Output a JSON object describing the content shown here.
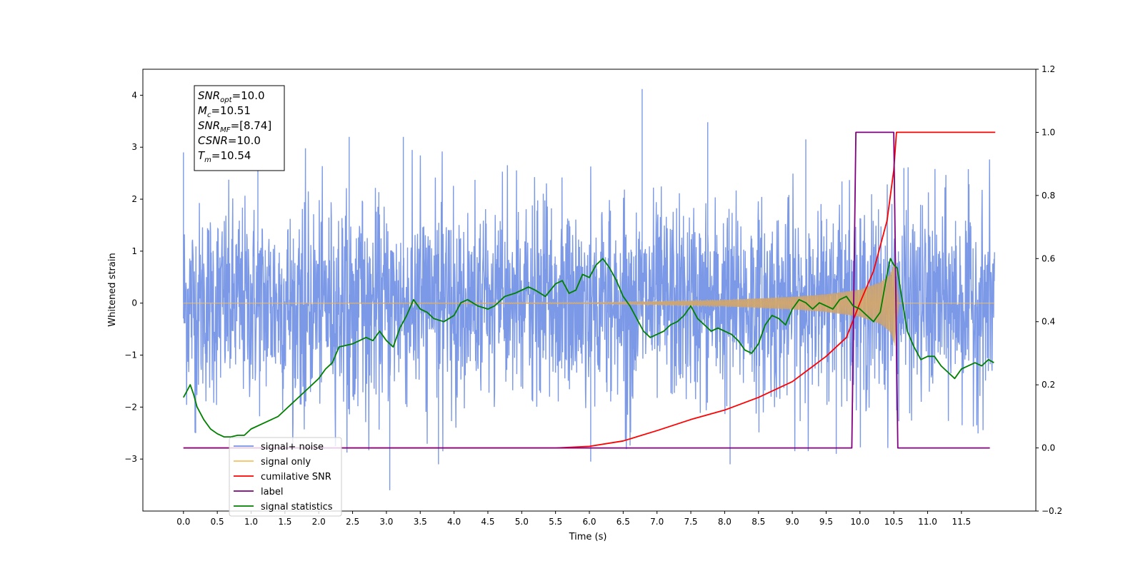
{
  "chart_data": {
    "type": "line",
    "xlabel": "Time (s)",
    "ylabel": "Whitened strain",
    "xlim": [
      -0.6,
      12.6
    ],
    "ylim": [
      -4.0,
      4.5
    ],
    "y2lim": [
      -0.2,
      1.2
    ],
    "x_ticks": [
      0.0,
      0.5,
      1.0,
      1.5,
      2.0,
      2.5,
      3.0,
      3.5,
      4.0,
      4.5,
      5.0,
      5.5,
      6.0,
      6.5,
      7.0,
      7.5,
      8.0,
      8.5,
      9.0,
      9.5,
      10.0,
      10.5,
      11.0,
      11.5
    ],
    "x_tick_labels": [
      "0.0",
      "0.5",
      "1.0",
      "1.5",
      "2.0",
      "2.5",
      "3.0",
      "3.5",
      "4.0",
      "4.5",
      "5.0",
      "5.5",
      "6.0",
      "6.5",
      "7.0",
      "7.5",
      "8.0",
      "8.5",
      "9.0",
      "9.5",
      "10.0",
      "10.5",
      "11.0",
      "11.5"
    ],
    "y_ticks": [
      -3,
      -2,
      -1,
      0,
      1,
      2,
      3,
      4
    ],
    "y_tick_labels": [
      "−3",
      "−2",
      "−1",
      "0",
      "1",
      "2",
      "3",
      "4"
    ],
    "y2_ticks": [
      -0.2,
      0.0,
      0.2,
      0.4,
      0.6,
      0.8,
      1.0,
      1.2
    ],
    "y2_tick_labels": [
      "−0.2",
      "0.0",
      "0.2",
      "0.4",
      "0.6",
      "0.8",
      "1.0",
      "1.2"
    ],
    "grid": false,
    "legend_position": "lower-left",
    "annotation_box": {
      "position": "top-left",
      "lines": [
        {
          "base": "SNR",
          "sub": "opt",
          "rest": "=10.0"
        },
        {
          "base": "M",
          "sub": "c",
          "rest": "=10.51"
        },
        {
          "base": "SNR",
          "sub": "MF",
          "rest": "=[8.74]"
        },
        {
          "base": "CSNR",
          "sub": "",
          "rest": "=10.0"
        },
        {
          "base": "T",
          "sub": "m",
          "rest": "=10.54"
        }
      ]
    },
    "series": [
      {
        "name": "signal+ noise",
        "axis": "left",
        "color": "#7593e6",
        "description_values": "whitened noise with std ≈ 0.9, peaks ≈ ±3",
        "x_range": [
          0.0,
          11.99
        ],
        "spikes": [
          [
            0.0,
            2.9
          ],
          [
            0.18,
            -2.5
          ],
          [
            1.1,
            2.75
          ],
          [
            2.45,
            3.2
          ],
          [
            3.05,
            -3.6
          ],
          [
            3.25,
            3.2
          ],
          [
            3.77,
            -3.1
          ],
          [
            6.78,
            4.12
          ],
          [
            6.02,
            -3.05
          ],
          [
            7.75,
            3.48
          ],
          [
            8.08,
            -3.1
          ],
          [
            9.2,
            3.15
          ],
          [
            9.65,
            -2.9
          ],
          [
            10.65,
            2.6
          ]
        ]
      },
      {
        "name": "signal only",
        "axis": "left",
        "color": "#f5c060",
        "x_range": [
          0.0,
          11.99
        ],
        "envelope": [
          [
            0.0,
            0.0
          ],
          [
            6.0,
            0.01
          ],
          [
            7.0,
            0.03
          ],
          [
            8.0,
            0.06
          ],
          [
            9.0,
            0.12
          ],
          [
            9.5,
            0.17
          ],
          [
            10.0,
            0.26
          ],
          [
            10.3,
            0.4
          ],
          [
            10.45,
            0.55
          ],
          [
            10.5,
            0.75
          ],
          [
            10.54,
            0.95
          ],
          [
            10.55,
            0.0
          ],
          [
            11.99,
            0.0
          ]
        ]
      },
      {
        "name": "cumilative SNR",
        "axis": "right",
        "color": "#ff0000",
        "points": [
          [
            0.0,
            0.0
          ],
          [
            5.0,
            0.0
          ],
          [
            5.5,
            0.0
          ],
          [
            6.0,
            0.005
          ],
          [
            6.5,
            0.022
          ],
          [
            7.0,
            0.055
          ],
          [
            7.5,
            0.09
          ],
          [
            8.0,
            0.12
          ],
          [
            8.5,
            0.16
          ],
          [
            9.0,
            0.21
          ],
          [
            9.5,
            0.29
          ],
          [
            9.8,
            0.35
          ],
          [
            10.0,
            0.46
          ],
          [
            10.2,
            0.56
          ],
          [
            10.4,
            0.72
          ],
          [
            10.5,
            0.88
          ],
          [
            10.54,
            1.0
          ],
          [
            12.0,
            1.0
          ]
        ]
      },
      {
        "name": "label",
        "axis": "right",
        "color": "#800080",
        "points": [
          [
            0.0,
            0.0
          ],
          [
            9.88,
            0.0
          ],
          [
            9.94,
            1.0
          ],
          [
            10.5,
            1.0
          ],
          [
            10.56,
            0.0
          ],
          [
            11.92,
            0.0
          ]
        ]
      },
      {
        "name": "signal statistics",
        "axis": "right",
        "color": "#008000",
        "points": [
          [
            0.0,
            0.16
          ],
          [
            0.05,
            0.18
          ],
          [
            0.1,
            0.2
          ],
          [
            0.15,
            0.17
          ],
          [
            0.2,
            0.13
          ],
          [
            0.3,
            0.09
          ],
          [
            0.4,
            0.06
          ],
          [
            0.5,
            0.045
          ],
          [
            0.6,
            0.035
          ],
          [
            0.7,
            0.035
          ],
          [
            0.8,
            0.04
          ],
          [
            0.9,
            0.04
          ],
          [
            1.0,
            0.06
          ],
          [
            1.2,
            0.08
          ],
          [
            1.4,
            0.1
          ],
          [
            1.6,
            0.14
          ],
          [
            1.8,
            0.18
          ],
          [
            2.0,
            0.22
          ],
          [
            2.1,
            0.25
          ],
          [
            2.2,
            0.27
          ],
          [
            2.3,
            0.32
          ],
          [
            2.5,
            0.33
          ],
          [
            2.7,
            0.35
          ],
          [
            2.8,
            0.34
          ],
          [
            2.9,
            0.37
          ],
          [
            3.0,
            0.34
          ],
          [
            3.1,
            0.32
          ],
          [
            3.2,
            0.38
          ],
          [
            3.3,
            0.42
          ],
          [
            3.4,
            0.47
          ],
          [
            3.5,
            0.44
          ],
          [
            3.6,
            0.43
          ],
          [
            3.7,
            0.41
          ],
          [
            3.85,
            0.4
          ],
          [
            4.0,
            0.42
          ],
          [
            4.1,
            0.46
          ],
          [
            4.2,
            0.47
          ],
          [
            4.35,
            0.45
          ],
          [
            4.5,
            0.44
          ],
          [
            4.6,
            0.45
          ],
          [
            4.75,
            0.48
          ],
          [
            4.9,
            0.49
          ],
          [
            5.0,
            0.5
          ],
          [
            5.1,
            0.51
          ],
          [
            5.2,
            0.5
          ],
          [
            5.35,
            0.48
          ],
          [
            5.5,
            0.52
          ],
          [
            5.6,
            0.53
          ],
          [
            5.7,
            0.49
          ],
          [
            5.8,
            0.5
          ],
          [
            5.9,
            0.55
          ],
          [
            6.0,
            0.54
          ],
          [
            6.1,
            0.58
          ],
          [
            6.2,
            0.6
          ],
          [
            6.3,
            0.57
          ],
          [
            6.4,
            0.53
          ],
          [
            6.5,
            0.48
          ],
          [
            6.6,
            0.45
          ],
          [
            6.7,
            0.41
          ],
          [
            6.8,
            0.37
          ],
          [
            6.9,
            0.35
          ],
          [
            7.0,
            0.36
          ],
          [
            7.1,
            0.37
          ],
          [
            7.2,
            0.39
          ],
          [
            7.3,
            0.4
          ],
          [
            7.4,
            0.42
          ],
          [
            7.5,
            0.45
          ],
          [
            7.6,
            0.41
          ],
          [
            7.7,
            0.39
          ],
          [
            7.8,
            0.37
          ],
          [
            7.9,
            0.38
          ],
          [
            8.0,
            0.37
          ],
          [
            8.1,
            0.36
          ],
          [
            8.2,
            0.34
          ],
          [
            8.3,
            0.31
          ],
          [
            8.4,
            0.3
          ],
          [
            8.5,
            0.33
          ],
          [
            8.6,
            0.39
          ],
          [
            8.7,
            0.42
          ],
          [
            8.8,
            0.41
          ],
          [
            8.9,
            0.39
          ],
          [
            9.0,
            0.44
          ],
          [
            9.1,
            0.47
          ],
          [
            9.2,
            0.46
          ],
          [
            9.3,
            0.44
          ],
          [
            9.4,
            0.46
          ],
          [
            9.5,
            0.45
          ],
          [
            9.6,
            0.44
          ],
          [
            9.7,
            0.47
          ],
          [
            9.8,
            0.48
          ],
          [
            9.9,
            0.45
          ],
          [
            10.0,
            0.44
          ],
          [
            10.1,
            0.42
          ],
          [
            10.2,
            0.4
          ],
          [
            10.3,
            0.43
          ],
          [
            10.4,
            0.55
          ],
          [
            10.45,
            0.6
          ],
          [
            10.5,
            0.58
          ],
          [
            10.55,
            0.57
          ],
          [
            10.6,
            0.5
          ],
          [
            10.7,
            0.37
          ],
          [
            10.8,
            0.32
          ],
          [
            10.9,
            0.28
          ],
          [
            11.0,
            0.29
          ],
          [
            11.1,
            0.29
          ],
          [
            11.2,
            0.26
          ],
          [
            11.3,
            0.24
          ],
          [
            11.4,
            0.22
          ],
          [
            11.5,
            0.25
          ],
          [
            11.6,
            0.26
          ],
          [
            11.7,
            0.27
          ],
          [
            11.8,
            0.26
          ],
          [
            11.9,
            0.28
          ],
          [
            11.98,
            0.27
          ]
        ]
      }
    ],
    "legend": [
      {
        "label": "signal+ noise",
        "color": "#7593e6"
      },
      {
        "label": "signal only",
        "color": "#f5c060"
      },
      {
        "label": "cumilative SNR",
        "color": "#ff0000"
      },
      {
        "label": "label",
        "color": "#800080"
      },
      {
        "label": "signal statistics",
        "color": "#008000"
      }
    ]
  }
}
